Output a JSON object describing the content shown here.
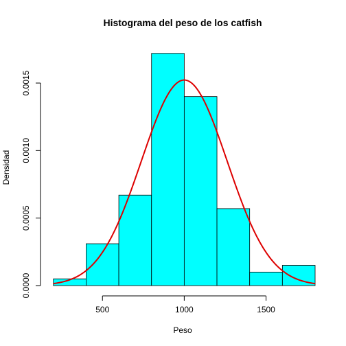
{
  "chart_data": {
    "type": "bar",
    "subtype": "histogram",
    "title": "Histograma del peso de los catfish",
    "xlabel": "Peso",
    "ylabel": "Densidad",
    "xlim": [
      180,
      1800
    ],
    "ylim": [
      0,
      0.0018
    ],
    "x_ticks": [
      500,
      1000,
      1500
    ],
    "x_tick_labels": [
      "500",
      "1000",
      "1500"
    ],
    "y_ticks": [
      0,
      0.0005,
      0.001,
      0.0015
    ],
    "y_tick_labels": [
      "0.0000",
      "0.0005",
      "0.0010",
      "0.0015"
    ],
    "bins": [
      {
        "start": 200,
        "end": 400,
        "density": 5e-05
      },
      {
        "start": 400,
        "end": 600,
        "density": 0.00031
      },
      {
        "start": 600,
        "end": 800,
        "density": 0.00067
      },
      {
        "start": 800,
        "end": 1000,
        "density": 0.00172
      },
      {
        "start": 1000,
        "end": 1200,
        "density": 0.0014
      },
      {
        "start": 1200,
        "end": 1400,
        "density": 0.00057
      },
      {
        "start": 1400,
        "end": 1600,
        "density": 0.0001
      },
      {
        "start": 1600,
        "end": 1800,
        "density": 0.00015
      }
    ],
    "density_curve": {
      "type": "normal",
      "mean": 1000,
      "sd": 262
    },
    "colors": {
      "bar_fill": "#00ffff",
      "curve": "#dd0000"
    },
    "grid": false,
    "legend": "none"
  }
}
